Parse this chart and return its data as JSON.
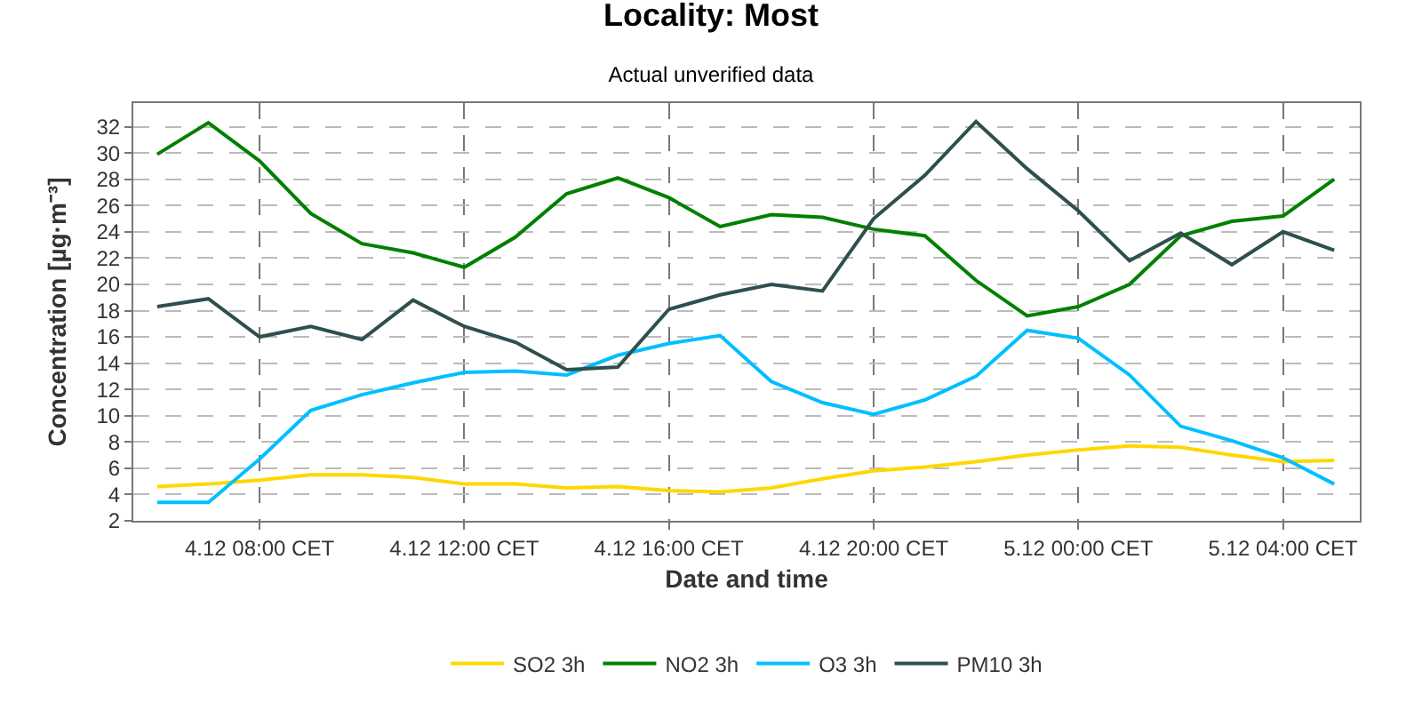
{
  "chart_data": {
    "type": "line",
    "title": "Locality: Most",
    "subtitle": "Actual unverified data",
    "xlabel": "Date and time",
    "ylabel": "Concentration [µg·m⁻³]",
    "x": [
      "--12-04T06:00",
      "--12-04T07:00",
      "--12-04T08:00",
      "--12-04T09:00",
      "--12-04T10:00",
      "--12-04T11:00",
      "--12-04T12:00",
      "--12-04T13:00",
      "--12-04T14:00",
      "--12-04T15:00",
      "--12-04T16:00",
      "--12-04T17:00",
      "--12-04T18:00",
      "--12-04T19:00",
      "--12-04T20:00",
      "--12-04T21:00",
      "--12-04T22:00",
      "--12-04T23:00",
      "--12-05T00:00",
      "--12-05T01:00",
      "--12-05T02:00",
      "--12-05T03:00",
      "--12-05T04:00",
      "--12-05T05:00"
    ],
    "series": [
      {
        "name": "SO2 3h",
        "color": "#ffd700",
        "values": [
          4.6,
          4.8,
          5.1,
          5.5,
          5.5,
          5.3,
          4.8,
          4.8,
          4.5,
          4.6,
          4.3,
          4.2,
          4.5,
          5.2,
          5.8,
          6.1,
          6.5,
          7.0,
          7.4,
          7.7,
          7.6,
          7.0,
          6.5,
          6.6
        ]
      },
      {
        "name": "NO2 3h",
        "color": "#008000",
        "values": [
          29.9,
          32.3,
          29.4,
          25.4,
          23.1,
          22.4,
          21.3,
          23.6,
          26.9,
          28.1,
          26.6,
          24.4,
          25.3,
          25.1,
          24.2,
          23.7,
          20.3,
          17.6,
          18.3,
          20.0,
          23.7,
          24.8,
          25.2,
          28.0
        ]
      },
      {
        "name": "O3 3h",
        "color": "#00bfff",
        "values": [
          3.4,
          3.4,
          6.7,
          10.4,
          11.6,
          12.5,
          13.3,
          13.4,
          13.1,
          14.6,
          15.5,
          16.1,
          12.6,
          11.0,
          10.1,
          11.2,
          13.0,
          16.5,
          15.9,
          13.1,
          9.2,
          8.1,
          6.8,
          4.8
        ]
      },
      {
        "name": "PM10 3h",
        "color": "#2f4f4f",
        "values": [
          18.3,
          18.9,
          16.0,
          16.8,
          15.8,
          18.8,
          16.8,
          15.6,
          13.5,
          13.7,
          18.1,
          19.2,
          20.0,
          19.5,
          25.0,
          28.3,
          32.4,
          28.8,
          25.6,
          21.8,
          23.9,
          21.5,
          24.0,
          22.6
        ]
      }
    ],
    "xlim": [
      "--12-04T05:32",
      "--12-05T05:30"
    ],
    "xticks": [
      {
        "value": "--12-04T08:00",
        "label": "4.12 08:00 CET"
      },
      {
        "value": "--12-04T12:00",
        "label": "4.12 12:00 CET"
      },
      {
        "value": "--12-04T16:00",
        "label": "4.12 16:00 CET"
      },
      {
        "value": "--12-04T20:00",
        "label": "4.12 20:00 CET"
      },
      {
        "value": "--12-05T00:00",
        "label": "5.12 00:00 CET"
      },
      {
        "value": "--12-05T04:00",
        "label": "5.12 04:00 CET"
      }
    ],
    "ylim": [
      2,
      33.8
    ],
    "yticks": [
      2,
      4,
      6,
      8,
      10,
      12,
      14,
      16,
      18,
      20,
      22,
      24,
      26,
      28,
      30,
      32
    ],
    "grid": true,
    "legend": "bottom",
    "marker": "none",
    "line_style": "solid"
  }
}
